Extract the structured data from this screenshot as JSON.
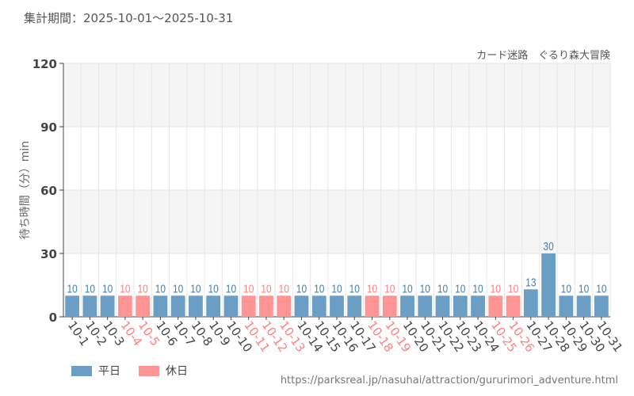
{
  "period": "集計期間：2025-10-01〜2025-10-31",
  "attraction": "カード迷路　ぐるり森大冒険",
  "url": "https://parksreal.jp/nasuhai/attraction/gururimori_adventure.html",
  "colors": {
    "weekday": "#6a9ec5",
    "holiday": "#ff9494",
    "weekday_label": "#4a7fae",
    "holiday_label": "#ff8080"
  },
  "chart_data": {
    "type": "bar",
    "ylabel": "待ち時間（分）min",
    "ylim": [
      0,
      120
    ],
    "yticks": [
      0,
      30,
      60,
      90,
      120
    ],
    "legend": [
      {
        "name": "平日",
        "key": "weekday"
      },
      {
        "name": "休日",
        "key": "holiday"
      }
    ],
    "categories": [
      "10-1",
      "10-2",
      "10-3",
      "10-4",
      "10-5",
      "10-6",
      "10-7",
      "10-8",
      "10-9",
      "10-10",
      "10-11",
      "10-12",
      "10-13",
      "10-14",
      "10-15",
      "10-16",
      "10-17",
      "10-18",
      "10-19",
      "10-20",
      "10-21",
      "10-22",
      "10-23",
      "10-24",
      "10-25",
      "10-26",
      "10-27",
      "10-28",
      "10-29",
      "10-30",
      "10-31"
    ],
    "values": [
      10,
      10,
      10,
      10,
      10,
      10,
      10,
      10,
      10,
      10,
      10,
      10,
      10,
      10,
      10,
      10,
      10,
      10,
      10,
      10,
      10,
      10,
      10,
      10,
      10,
      10,
      13,
      30,
      10,
      10,
      10
    ],
    "holiday": [
      false,
      false,
      false,
      true,
      true,
      false,
      false,
      false,
      false,
      false,
      true,
      true,
      true,
      false,
      false,
      false,
      false,
      true,
      true,
      false,
      false,
      false,
      false,
      false,
      true,
      true,
      false,
      false,
      false,
      false,
      false
    ]
  }
}
